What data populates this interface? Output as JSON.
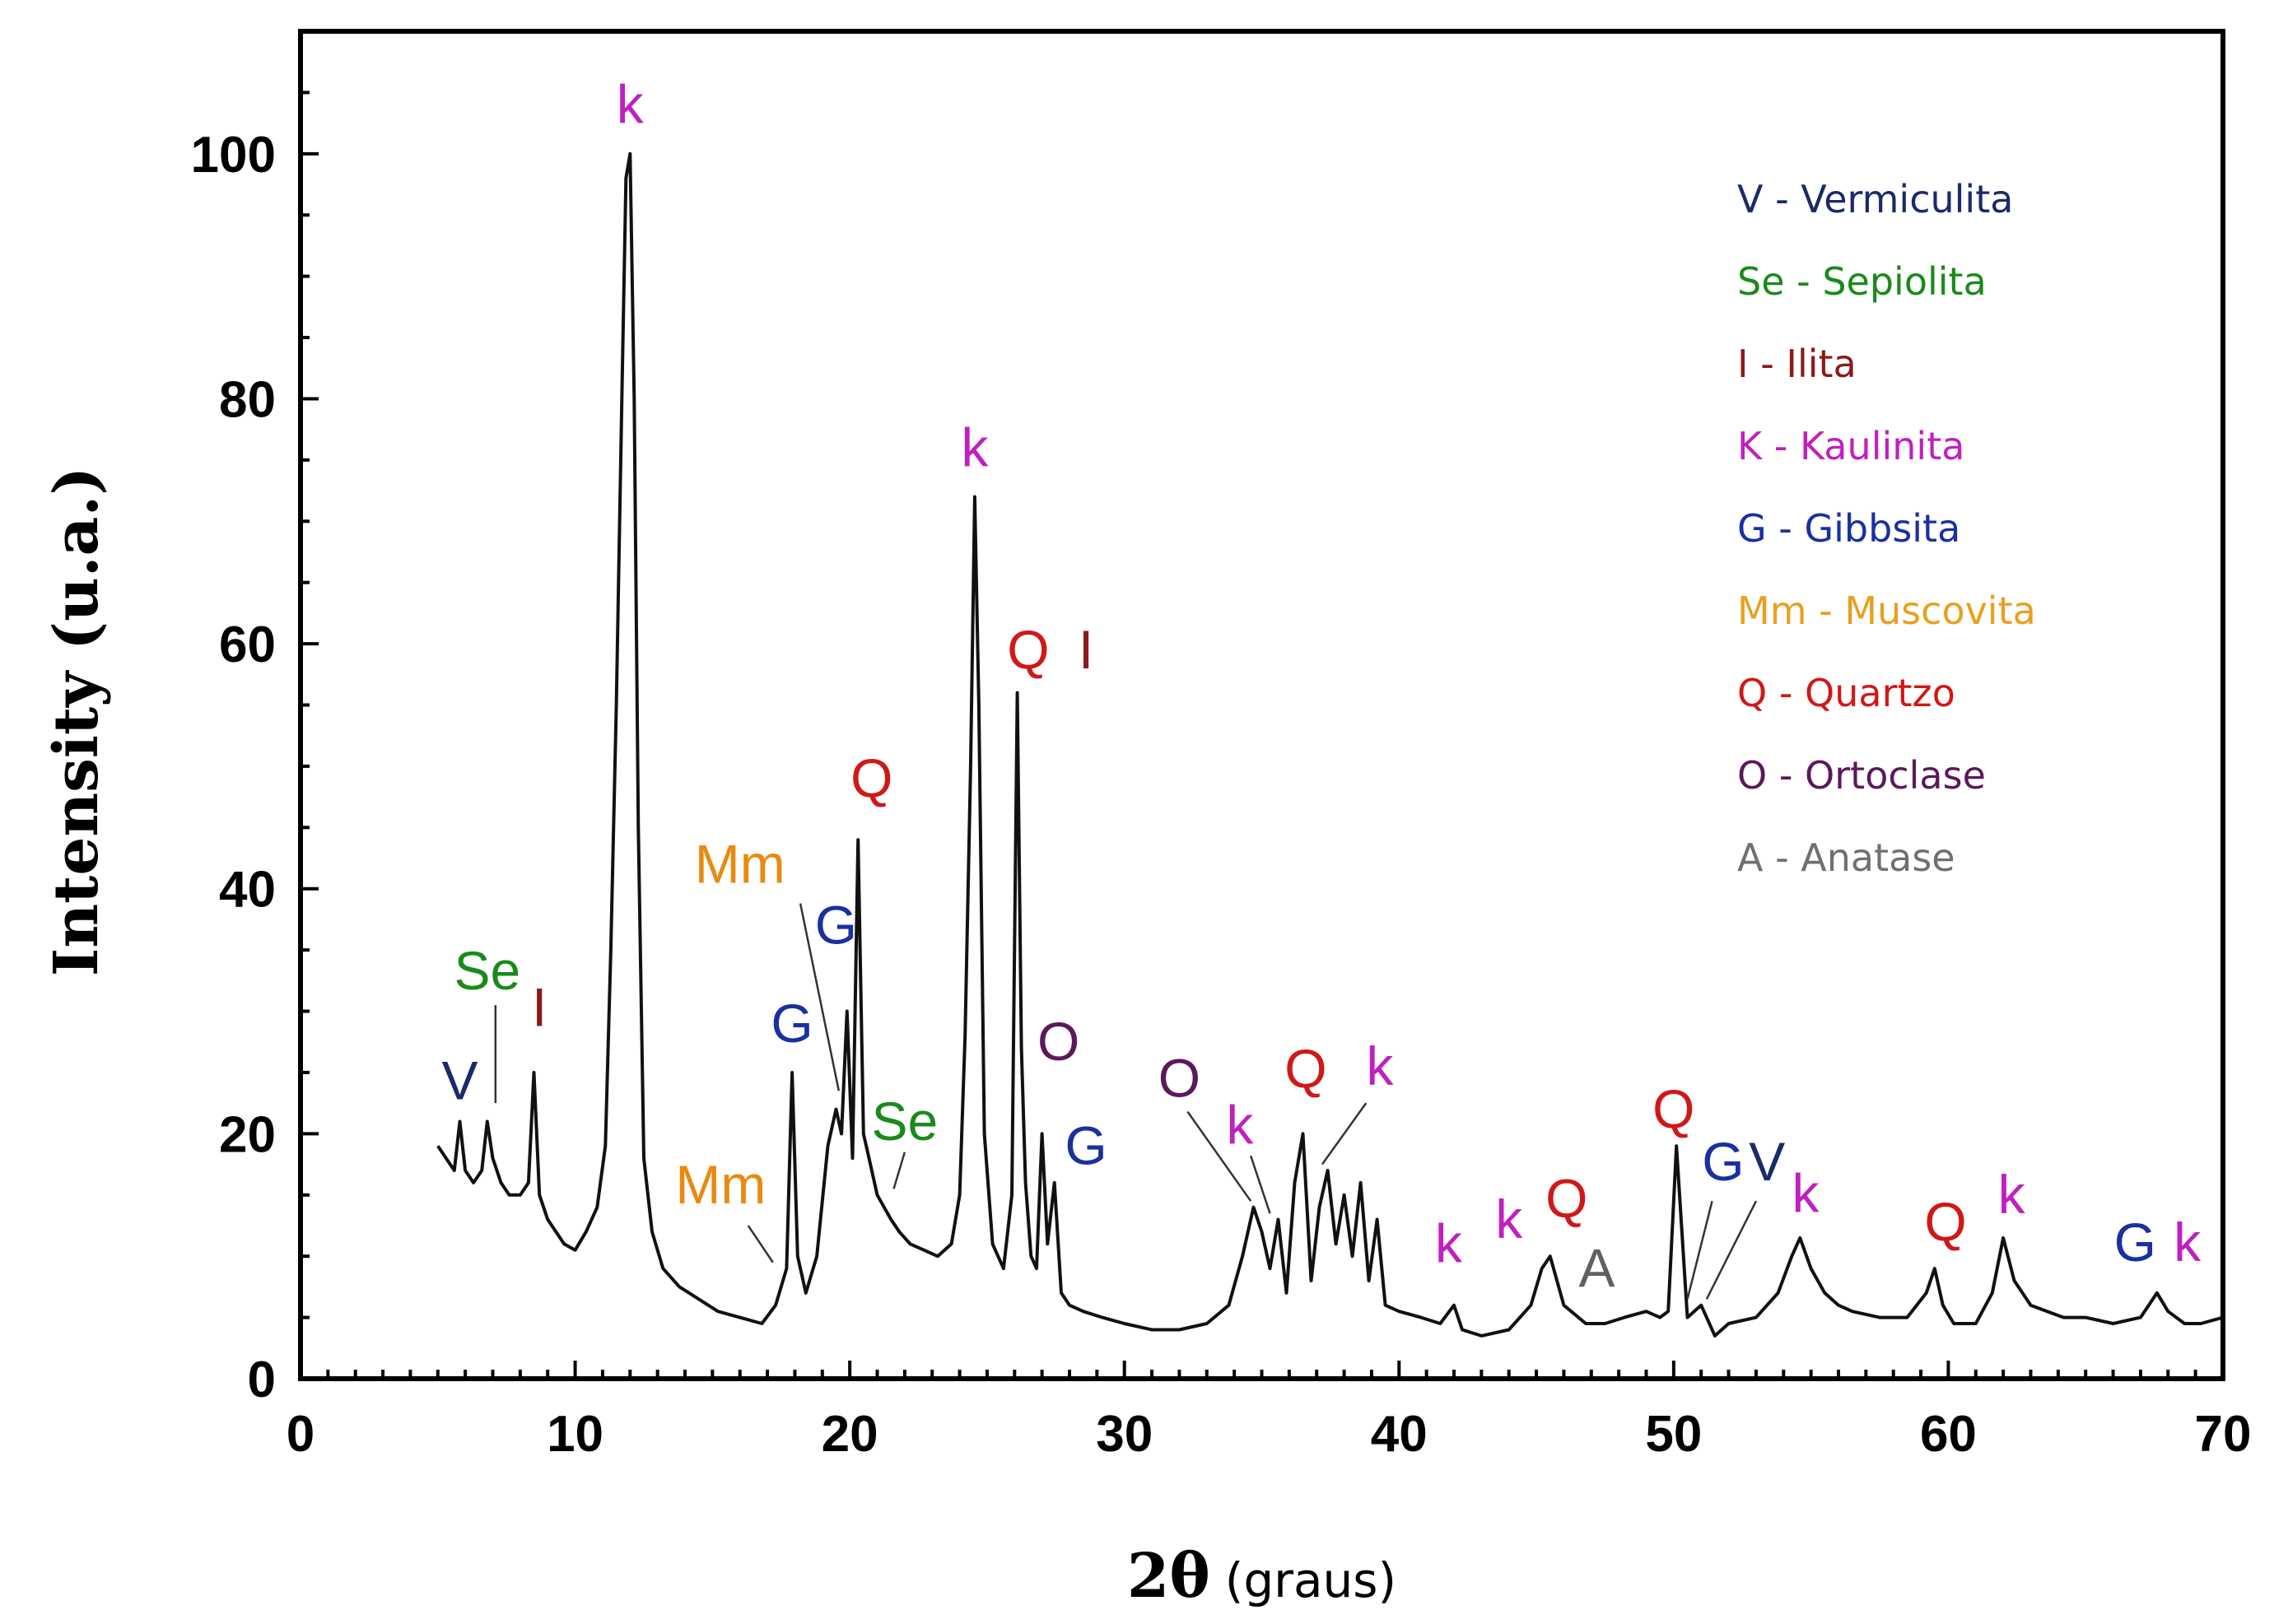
{
  "chart_data": {
    "type": "line",
    "title": "",
    "xlabel": "2θ",
    "xlabel_unit": "(graus)",
    "ylabel": "Intensity (u.a.)",
    "xlim": [
      0,
      70
    ],
    "ylim": [
      0,
      110
    ],
    "x_ticks": [
      0,
      10,
      20,
      30,
      40,
      50,
      60,
      70
    ],
    "y_ticks": [
      0,
      20,
      40,
      60,
      80,
      100
    ],
    "grid": false,
    "legend_position": "top-right",
    "line_color": "#111111",
    "series": [
      {
        "x": [
          5.0,
          5.3,
          5.6,
          5.8,
          6.0,
          6.3,
          6.6,
          6.8,
          7.0,
          7.3,
          7.6,
          8.0,
          8.3,
          8.5,
          8.7,
          9.0,
          9.3,
          9.6,
          10.0,
          10.4,
          10.8,
          11.1,
          11.3,
          11.5,
          11.7,
          11.85,
          12.0,
          12.15,
          12.3,
          12.5,
          12.8,
          13.2,
          13.8,
          14.5,
          15.2,
          16.0,
          16.8,
          17.3,
          17.7,
          17.9,
          18.1,
          18.4,
          18.8,
          19.2,
          19.5,
          19.7,
          19.9,
          20.1,
          20.3,
          20.5,
          20.7,
          21.0,
          21.5,
          21.8,
          22.2,
          22.7,
          23.2,
          23.7,
          24.0,
          24.2,
          24.4,
          24.55,
          24.7,
          24.9,
          25.2,
          25.6,
          25.9,
          26.1,
          26.25,
          26.4,
          26.6,
          26.8,
          27.0,
          27.2,
          27.45,
          27.7,
          28.0,
          28.5,
          29.2,
          30.0,
          31.0,
          32.0,
          33.0,
          33.8,
          34.3,
          34.7,
          35.0,
          35.3,
          35.6,
          35.9,
          36.2,
          36.5,
          36.8,
          37.1,
          37.4,
          37.7,
          38.0,
          38.3,
          38.6,
          38.9,
          39.2,
          39.5,
          40.0,
          40.8,
          41.5,
          42.0,
          42.3,
          43.0,
          44.0,
          44.8,
          45.2,
          45.5,
          46.0,
          46.8,
          47.5,
          48.2,
          49.0,
          49.5,
          49.8,
          50.1,
          50.5,
          51.0,
          51.5,
          52.0,
          53.0,
          53.8,
          54.3,
          54.6,
          55.0,
          55.5,
          56.0,
          56.5,
          57.5,
          58.5,
          59.2,
          59.5,
          59.8,
          60.2,
          61.0,
          61.6,
          62.0,
          62.4,
          63.0,
          63.6,
          64.2,
          65.0,
          66.0,
          67.0,
          67.6,
          68.0,
          68.6,
          69.2,
          70.0
        ],
        "y": [
          19,
          18,
          17,
          21,
          17,
          16,
          17,
          21,
          18,
          16,
          15,
          15,
          16,
          25,
          15,
          13,
          12,
          11,
          10.5,
          12,
          14,
          19,
          35,
          55,
          80,
          98,
          100,
          80,
          45,
          18,
          12,
          9,
          7.5,
          6.5,
          5.5,
          5,
          4.5,
          6,
          9,
          25,
          10,
          7,
          10,
          19,
          22,
          20,
          30,
          18,
          44,
          20,
          18,
          15,
          13,
          12,
          11,
          10.5,
          10,
          11,
          15,
          28,
          50,
          72,
          55,
          20,
          11,
          9,
          15,
          56,
          27,
          16,
          10,
          9,
          20,
          11,
          16,
          7,
          6,
          5.5,
          5,
          4.5,
          4,
          4,
          4.5,
          6,
          10,
          14,
          12,
          9,
          13,
          7,
          16,
          20,
          8,
          14,
          17,
          11,
          15,
          10,
          16,
          8,
          13,
          6,
          5.5,
          5,
          4.5,
          6,
          4,
          3.5,
          4,
          6,
          9,
          10,
          6,
          4.5,
          4.5,
          5,
          5.5,
          5,
          5.5,
          19,
          5,
          6,
          3.5,
          4.5,
          5,
          7,
          10,
          11.5,
          9,
          7,
          6,
          5.5,
          5,
          5,
          7,
          9,
          6,
          4.5,
          4.5,
          7,
          11.5,
          8,
          6,
          5.5,
          5,
          5,
          4.5,
          5,
          7,
          5.5,
          4.5,
          4.5,
          5
        ]
      }
    ],
    "peak_labels": [
      {
        "text": "k",
        "x": 12.0,
        "y": 101,
        "tx": 12.0,
        "ty": 102.5,
        "color": "#c020c0",
        "size": 52
      },
      {
        "text": "k",
        "x": 24.55,
        "y": 73,
        "tx": 24.55,
        "ty": 74.5,
        "color": "#c020c0",
        "size": 52
      },
      {
        "text": "Q",
        "x": 26.25,
        "y": 57,
        "tx": 26.5,
        "ty": 58,
        "color": "#d01818"
      },
      {
        "text": "I",
        "x": 26.6,
        "y": 57,
        "tx": 28.6,
        "ty": 58,
        "color": "#8b1a1a"
      },
      {
        "text": "Q",
        "x": 20.3,
        "y": 45,
        "tx": 20.8,
        "ty": 47.5,
        "color": "#d01818"
      },
      {
        "text": "Mm",
        "x": 19.6,
        "y": 23,
        "tx": 16.0,
        "ty": 40.5,
        "color": "#e88a10",
        "line": [
          18.2,
          38.8,
          19.6,
          23.5
        ]
      },
      {
        "text": "G",
        "x": 19.9,
        "y": 31,
        "tx": 19.5,
        "ty": 35.5,
        "color": "#1a30a0"
      },
      {
        "text": "G",
        "x": 17.9,
        "y": 26,
        "tx": 17.9,
        "ty": 27.5,
        "color": "#1a30a0"
      },
      {
        "text": "Se",
        "x": 21.6,
        "y": 15,
        "tx": 22.0,
        "ty": 19.5,
        "color": "#1a8a1a",
        "line": [
          22.0,
          18.5,
          21.6,
          15.5
        ]
      },
      {
        "text": "Mm",
        "x": 17.2,
        "y": 9,
        "tx": 15.3,
        "ty": 14.3,
        "color": "#e88a10",
        "line": [
          16.3,
          12.5,
          17.2,
          9.5
        ]
      },
      {
        "text": "Se",
        "x": 7.1,
        "y": 22,
        "tx": 6.8,
        "ty": 31.8,
        "color": "#1a8a1a",
        "line": [
          7.1,
          30.5,
          7.1,
          22.5
        ]
      },
      {
        "text": "I",
        "x": 8.5,
        "y": 26,
        "tx": 8.7,
        "ty": 28.8,
        "color": "#8b1a1a"
      },
      {
        "text": "V",
        "x": 5.8,
        "y": 22,
        "tx": 5.8,
        "ty": 22.8,
        "color": "#1a2a6a",
        "size": 56
      },
      {
        "text": "O",
        "x": 27.0,
        "y": 21,
        "tx": 27.6,
        "ty": 26,
        "color": "#5a1a5a"
      },
      {
        "text": "G",
        "x": 27.45,
        "y": 16,
        "tx": 28.6,
        "ty": 17.5,
        "color": "#1a30a0"
      },
      {
        "text": "O",
        "x": 34.7,
        "y": 14,
        "tx": 32.0,
        "ty": 23,
        "color": "#5a1a5a",
        "line": [
          32.3,
          21.8,
          34.6,
          14.5
        ]
      },
      {
        "text": "k",
        "x": 35.3,
        "y": 13,
        "tx": 34.2,
        "ty": 19.2,
        "color": "#c020c0",
        "line": [
          34.6,
          18.2,
          35.3,
          13.5
        ]
      },
      {
        "text": "Q",
        "x": 36.5,
        "y": 20,
        "tx": 36.6,
        "ty": 23.8,
        "color": "#d01818"
      },
      {
        "text": "k",
        "x": 37.4,
        "y": 17,
        "tx": 39.3,
        "ty": 24,
        "color": "#c020c0",
        "line": [
          38.8,
          22.5,
          37.2,
          17.5
        ]
      },
      {
        "text": "k",
        "x": 42.0,
        "y": 6,
        "tx": 41.8,
        "ty": 9.5,
        "color": "#c020c0"
      },
      {
        "text": "k",
        "x": 44.8,
        "y": 10,
        "tx": 44.0,
        "ty": 11.5,
        "color": "#c020c0"
      },
      {
        "text": "Q",
        "x": 45.2,
        "y": 10,
        "tx": 46.1,
        "ty": 13.2,
        "color": "#d01818"
      },
      {
        "text": "A",
        "x": 47.3,
        "y": 6,
        "tx": 47.2,
        "ty": 7.5,
        "color": "#606060"
      },
      {
        "text": "Q",
        "x": 49.8,
        "y": 20,
        "tx": 50.0,
        "ty": 20.5,
        "color": "#d01818"
      },
      {
        "text": "G",
        "x": 50.5,
        "y": 6,
        "tx": 51.8,
        "ty": 16.2,
        "color": "#1a30a0",
        "line": [
          51.4,
          14.5,
          50.5,
          6.5
        ]
      },
      {
        "text": "V",
        "x": 51.0,
        "y": 6,
        "tx": 53.4,
        "ty": 16.2,
        "color": "#1a2a6a",
        "line": [
          53.0,
          14.5,
          51.2,
          6.5
        ]
      },
      {
        "text": "k",
        "x": 54.6,
        "y": 12,
        "tx": 54.8,
        "ty": 13.6,
        "color": "#c020c0"
      },
      {
        "text": "Q",
        "x": 59.5,
        "y": 9,
        "tx": 59.9,
        "ty": 11.3,
        "color": "#d01818"
      },
      {
        "text": "k",
        "x": 62.0,
        "y": 12,
        "tx": 62.3,
        "ty": 13.5,
        "color": "#c020c0"
      },
      {
        "text": "G",
        "x": 67.6,
        "y": 7,
        "tx": 66.8,
        "ty": 9.6,
        "color": "#1a30a0"
      },
      {
        "text": "k",
        "x": 68.0,
        "y": 7,
        "tx": 68.7,
        "ty": 9.6,
        "color": "#c020c0"
      }
    ],
    "legend": [
      {
        "text": "V - Vermiculita",
        "color": "#1a2a6a"
      },
      {
        "text": "Se - Sepiolita",
        "color": "#1a8a1a"
      },
      {
        "text": "I - Ilita",
        "color": "#8b1a1a"
      },
      {
        "text": "K - Kaulinita",
        "color": "#c020c0"
      },
      {
        "text": "G - Gibbsita",
        "color": "#1a30a0"
      },
      {
        "text": "Mm - Muscovita",
        "color": "#e8a020"
      },
      {
        "text": "Q - Quartzo",
        "color": "#d01818"
      },
      {
        "text": "O - Ortoclase",
        "color": "#5a1a5a"
      },
      {
        "text": "A - Anatase",
        "color": "#707070"
      }
    ]
  }
}
